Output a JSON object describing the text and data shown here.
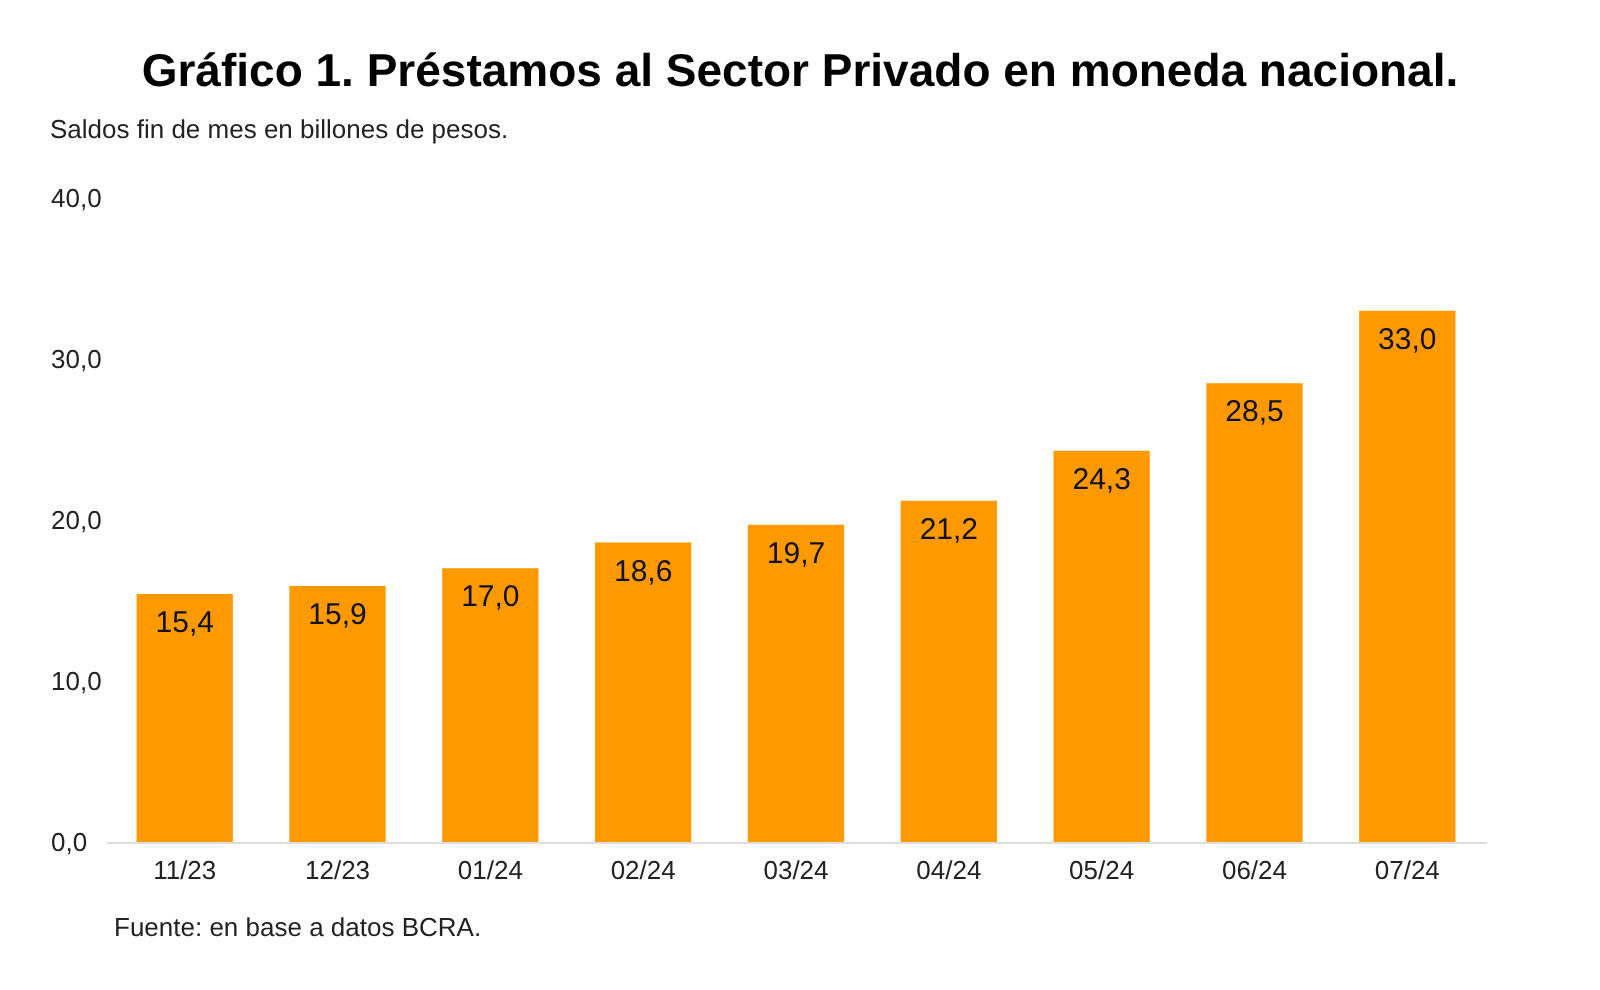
{
  "chart_data": {
    "type": "bar",
    "title": "Gráfico 1. Préstamos al Sector Privado en moneda nacional.",
    "subtitle": "Saldos fin de mes en billones  de pesos.",
    "categories": [
      "11/23",
      "12/23",
      "01/24",
      "02/24",
      "03/24",
      "04/24",
      "05/24",
      "06/24",
      "07/24"
    ],
    "values": [
      15.4,
      15.9,
      17.0,
      18.6,
      19.7,
      21.2,
      24.3,
      28.5,
      33.0
    ],
    "value_labels": [
      "15,4",
      "15,9",
      "17,0",
      "18,6",
      "19,7",
      "21,2",
      "24,3",
      "28,5",
      "33,0"
    ],
    "color": "#ff9900",
    "ylim": [
      0,
      40
    ],
    "yticks": [
      {
        "value": 0,
        "label": "0,0"
      },
      {
        "value": 10,
        "label": "10,0"
      },
      {
        "value": 20,
        "label": "20,0"
      },
      {
        "value": 30,
        "label": "30,0"
      },
      {
        "value": 40,
        "label": "40,0"
      }
    ],
    "grid": false,
    "annotations": [
      "Fuente: en base a datos BCRA."
    ]
  }
}
